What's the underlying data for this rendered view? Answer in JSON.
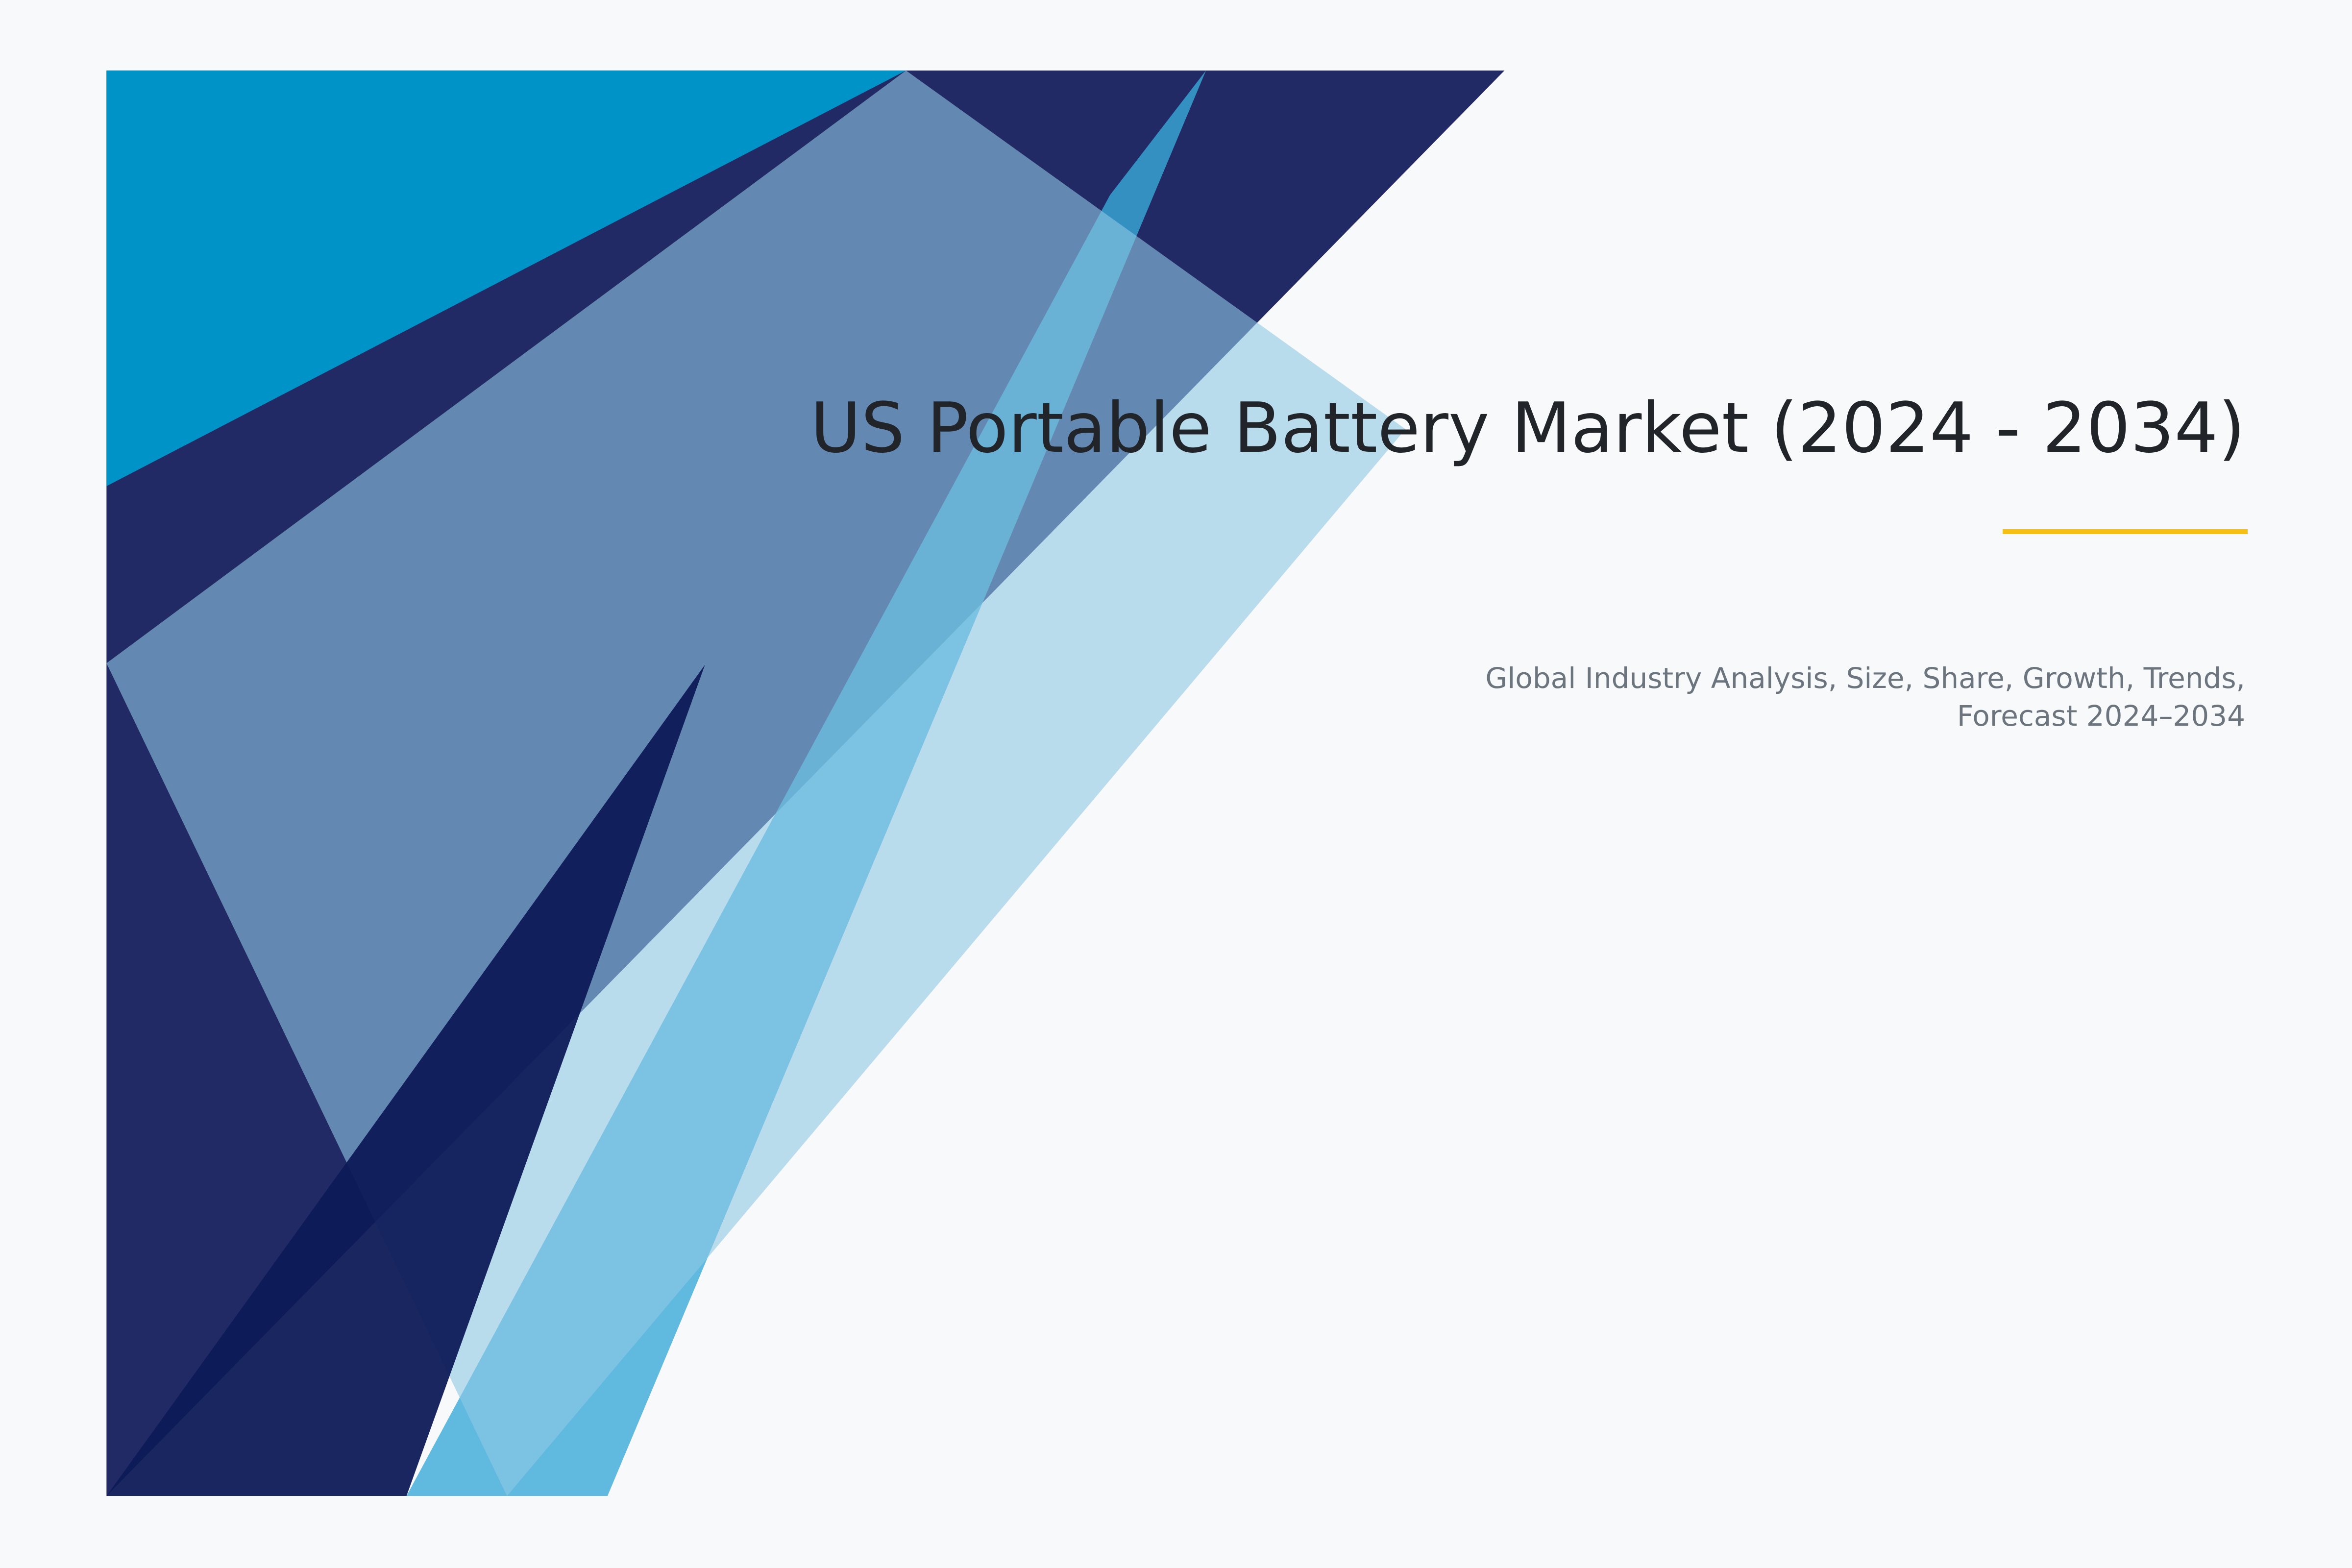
{
  "cover": {
    "title": "US Portable Battery Market (2024 - 2034)",
    "subtitle": "Global Industry Analysis, Size, Share, Growth, Trends, Forecast 2024–2034"
  },
  "colors": {
    "background": "#f8f9fb",
    "navy": "#222a66",
    "cyan": "#0093c8",
    "light_blue": "#90c8e4",
    "mid_blue": "#3aaad8",
    "dark_navy": "#0d1a57",
    "accent_underline": "#f5c013",
    "title": "#212529",
    "subtitle": "#6c757d"
  }
}
